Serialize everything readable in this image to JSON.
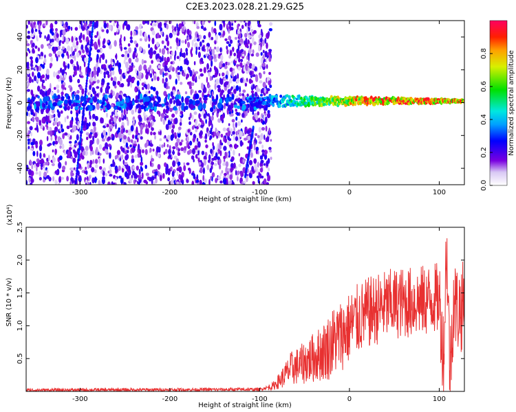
{
  "title": "C2E3.2023.028.21.29.G25",
  "chart_data": [
    {
      "type": "heatmap",
      "xlabel": "Height of straight line (km)",
      "ylabel": "Frequency (Hz)",
      "xlim": [
        -360,
        128
      ],
      "ylim": [
        -50,
        50
      ],
      "xticks": [
        -300,
        -200,
        -100,
        0,
        100
      ],
      "yticks": [
        -40,
        -20,
        0,
        20,
        40
      ],
      "colorbar": {
        "label": "Normalized spectral amplitude",
        "range": [
          0.0,
          1.0
        ],
        "ticks": [
          0.0,
          0.2,
          0.4,
          0.6,
          0.8
        ],
        "tick_labels": [
          "0.0",
          "0.2",
          "0.4",
          "0.6",
          "0.8"
        ]
      },
      "features": {
        "noise_region_x": [
          -360,
          -95
        ],
        "carrier_line": {
          "x": [
            -110,
            128
          ],
          "freq": 1,
          "peak_amplitude": 0.95
        },
        "streaks": [
          {
            "x": [
              -305,
              -285
            ],
            "freq": [
              -50,
              50
            ]
          },
          {
            "x": [
              -116,
              -107
            ],
            "freq": [
              -45,
              -15
            ]
          }
        ]
      }
    },
    {
      "type": "line",
      "xlabel": "Height of straight line (km)",
      "ylabel": "SNR (10 * v/v)",
      "y_multiplier": "(x10⁴)",
      "xlim": [
        -360,
        128
      ],
      "ylim": [
        0,
        25000
      ],
      "xticks": [
        -300,
        -200,
        -100,
        0,
        100
      ],
      "yticks": [
        5000,
        10000,
        15000,
        20000,
        25000
      ],
      "ytick_labels": [
        "0.5",
        "1.0",
        "1.5",
        "2.0",
        "2.5"
      ],
      "color": "#e83030",
      "series": [
        {
          "x": [
            -360,
            -100,
            -85,
            -75,
            -65,
            -55,
            -45,
            -35,
            -25,
            -15,
            -5,
            5,
            15,
            25,
            35,
            45,
            55,
            65,
            75,
            85,
            95,
            100,
            105,
            108,
            112,
            116,
            120,
            128
          ],
          "values": [
            200,
            300,
            800,
            2000,
            3500,
            4000,
            4800,
            5500,
            6500,
            8000,
            9000,
            10500,
            11500,
            12200,
            12800,
            13200,
            13500,
            13500,
            13700,
            13800,
            14200,
            14000,
            5000,
            23000,
            3000,
            14000,
            12500,
            13000
          ]
        }
      ]
    }
  ]
}
